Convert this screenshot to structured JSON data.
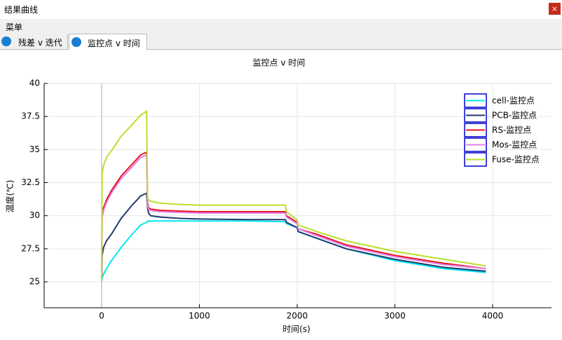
{
  "window": {
    "title": "结果曲线",
    "close": "×"
  },
  "menu": {
    "items": [
      "菜单"
    ]
  },
  "tabs": [
    {
      "label": "残差 v 迭代",
      "active": false
    },
    {
      "label": "监控点 v 时间",
      "active": true
    }
  ],
  "chart_data": {
    "type": "line",
    "title": "监控点 v 时间",
    "x_label": "时间(s)",
    "y_label": "温度(℃)",
    "x": [
      0,
      5,
      20,
      50,
      100,
      200,
      300,
      400,
      460,
      470,
      480,
      500,
      600,
      800,
      1000,
      1500,
      1880,
      1890,
      2000,
      2010,
      2200,
      2500,
      3000,
      3500,
      3930
    ],
    "series": [
      {
        "name": "cell-监控点",
        "color": "#00e8f0",
        "values": [
          25,
          25.3,
          25.6,
          26.0,
          26.6,
          27.6,
          28.5,
          29.3,
          29.5,
          29.6,
          29.6,
          29.6,
          29.6,
          29.6,
          29.6,
          29.6,
          29.55,
          29.4,
          29.1,
          28.8,
          28.3,
          27.5,
          26.6,
          26.0,
          25.7
        ]
      },
      {
        "name": "PCB-监控点",
        "color": "#1f3a6e",
        "values": [
          25,
          27.0,
          27.6,
          28.1,
          28.6,
          29.8,
          30.7,
          31.5,
          31.7,
          30.6,
          30.2,
          30.0,
          29.9,
          29.8,
          29.75,
          29.7,
          29.7,
          29.5,
          29.1,
          28.8,
          28.3,
          27.5,
          26.7,
          26.1,
          25.8
        ]
      },
      {
        "name": "RS-监控点",
        "color": "#e8101a",
        "values": [
          25,
          30.0,
          30.6,
          31.2,
          31.9,
          33.0,
          33.8,
          34.6,
          34.8,
          31.0,
          30.6,
          30.5,
          30.4,
          30.35,
          30.3,
          30.3,
          30.3,
          30.0,
          29.5,
          29.0,
          28.6,
          27.8,
          27.0,
          26.4,
          26.0
        ]
      },
      {
        "name": "Mos-监控点",
        "color": "#e080e8",
        "values": [
          25,
          29.8,
          30.4,
          31.0,
          31.7,
          32.8,
          33.6,
          34.4,
          34.6,
          30.8,
          30.5,
          30.4,
          30.3,
          30.25,
          30.2,
          30.2,
          30.2,
          29.9,
          29.4,
          29.0,
          28.5,
          27.7,
          26.9,
          26.3,
          26.0
        ]
      },
      {
        "name": "Fuse-监控点",
        "color": "#b8e02a",
        "values": [
          25,
          33.2,
          33.8,
          34.4,
          34.9,
          36.0,
          36.8,
          37.6,
          37.9,
          31.3,
          31.2,
          31.1,
          30.95,
          30.85,
          30.8,
          30.8,
          30.8,
          30.3,
          29.7,
          29.3,
          28.8,
          28.1,
          27.3,
          26.7,
          26.2
        ]
      }
    ],
    "xlim": [
      -588,
      4602
    ],
    "xticks": [
      0,
      1000,
      2000,
      3000,
      4000
    ],
    "ylim": [
      23.04,
      40
    ],
    "yticks": [
      25,
      27.5,
      30,
      32.5,
      35,
      37.5,
      40
    ],
    "grid": true,
    "legend": "top-right",
    "legend_color": "#0000cc"
  }
}
